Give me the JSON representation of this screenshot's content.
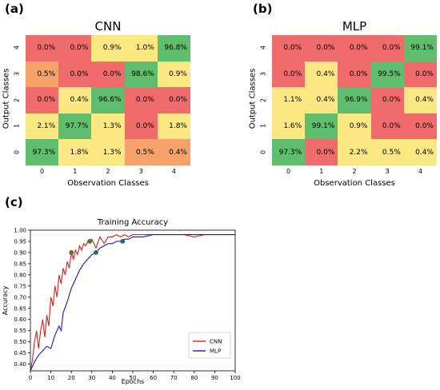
{
  "panels": {
    "a": "(a)",
    "b": "(b)",
    "c": "(c)"
  },
  "colors": {
    "high": "#5fbd6e",
    "low": "#f06b6b",
    "mid": "#fce882",
    "orange": "#f5a36a"
  },
  "chart_data": [
    {
      "type": "heatmap",
      "title": "CNN",
      "xlabel": "Observation Classes",
      "ylabel": "Output Classes",
      "x_categories": [
        "0",
        "1",
        "2",
        "3",
        "4"
      ],
      "y_categories": [
        "4",
        "3",
        "2",
        "1",
        "0"
      ],
      "values": [
        [
          "0.0%",
          "0.0%",
          "0.9%",
          "1.0%",
          "96.8%"
        ],
        [
          "0.5%",
          "0.0%",
          "0.0%",
          "98.6%",
          "0.9%"
        ],
        [
          "0.0%",
          "0.4%",
          "96.6%",
          "0.0%",
          "0.0%"
        ],
        [
          "2.1%",
          "97.7%",
          "1.3%",
          "0.0%",
          "1.8%"
        ],
        [
          "97.3%",
          "1.8%",
          "1.3%",
          "0.5%",
          "0.4%"
        ]
      ],
      "cell_colors": [
        [
          "low",
          "low",
          "mid",
          "mid",
          "high"
        ],
        [
          "orange",
          "low",
          "low",
          "high",
          "mid"
        ],
        [
          "low",
          "mid",
          "high",
          "low",
          "low"
        ],
        [
          "mid",
          "high",
          "mid",
          "low",
          "mid"
        ],
        [
          "high",
          "mid",
          "mid",
          "orange",
          "orange"
        ]
      ]
    },
    {
      "type": "heatmap",
      "title": "MLP",
      "xlabel": "Observation Classes",
      "ylabel": "Output Classes",
      "x_categories": [
        "0",
        "1",
        "2",
        "3",
        "4"
      ],
      "y_categories": [
        "4",
        "3",
        "2",
        "1",
        "0"
      ],
      "values": [
        [
          "0.0%",
          "0.0%",
          "0.0%",
          "0.0%",
          "99.1%"
        ],
        [
          "0.0%",
          "0.4%",
          "0.0%",
          "99.5%",
          "0.0%"
        ],
        [
          "1.1%",
          "0.4%",
          "96.9%",
          "0.0%",
          "0.4%"
        ],
        [
          "1.6%",
          "99.1%",
          "0.9%",
          "0.0%",
          "0.0%"
        ],
        [
          "97.3%",
          "0.0%",
          "2.2%",
          "0.5%",
          "0.4%"
        ]
      ],
      "cell_colors": [
        [
          "low",
          "low",
          "low",
          "low",
          "high"
        ],
        [
          "low",
          "mid",
          "low",
          "high",
          "low"
        ],
        [
          "mid",
          "mid",
          "high",
          "low",
          "mid"
        ],
        [
          "mid",
          "high",
          "mid",
          "low",
          "low"
        ],
        [
          "high",
          "low",
          "mid",
          "mid",
          "mid"
        ]
      ]
    },
    {
      "type": "line",
      "title": "Training Accuracy",
      "xlabel": "Epochs",
      "ylabel": "Accuracy",
      "xlim": [
        0,
        100
      ],
      "ylim": [
        0.37,
        1.0
      ],
      "xticks": [
        "0",
        "10",
        "20",
        "30",
        "40",
        "50",
        "60",
        "70",
        "80",
        "90",
        "100"
      ],
      "yticks": [
        "0.40",
        "0.45",
        "0.50",
        "0.55",
        "0.60",
        "0.65",
        "0.70",
        "0.75",
        "0.80",
        "0.85",
        "0.90",
        "0.95",
        "1.00"
      ],
      "legend_position": "bottom-right",
      "series": [
        {
          "name": "CNN",
          "color": "#e02020",
          "x": [
            0,
            1,
            2,
            3,
            4,
            5,
            6,
            7,
            8,
            9,
            10,
            11,
            12,
            13,
            14,
            15,
            16,
            17,
            18,
            19,
            20,
            21,
            22,
            23,
            24,
            25,
            26,
            27,
            28,
            29,
            30,
            32,
            34,
            36,
            38,
            40,
            42,
            44,
            46,
            48,
            50,
            55,
            60,
            65,
            70,
            75,
            80,
            85,
            90,
            95,
            100
          ],
          "y": [
            0.37,
            0.42,
            0.5,
            0.55,
            0.47,
            0.55,
            0.6,
            0.52,
            0.62,
            0.57,
            0.7,
            0.66,
            0.75,
            0.7,
            0.8,
            0.76,
            0.83,
            0.8,
            0.86,
            0.83,
            0.9,
            0.87,
            0.91,
            0.89,
            0.93,
            0.91,
            0.94,
            0.93,
            0.95,
            0.95,
            0.96,
            0.92,
            0.97,
            0.94,
            0.97,
            0.97,
            0.98,
            0.97,
            0.98,
            0.97,
            0.98,
            0.98,
            0.98,
            0.98,
            0.98,
            0.98,
            0.97,
            0.98,
            0.98,
            0.98,
            0.98
          ],
          "markers": [
            [
              20,
              0.9
            ],
            [
              29,
              0.95
            ]
          ]
        },
        {
          "name": "MLP",
          "color": "#1818c8",
          "x": [
            0,
            2,
            4,
            6,
            8,
            10,
            12,
            14,
            15,
            16,
            18,
            20,
            22,
            24,
            26,
            28,
            30,
            32,
            34,
            36,
            38,
            40,
            42,
            44,
            46,
            48,
            50,
            55,
            60,
            65,
            70,
            75,
            80,
            85,
            90,
            95,
            100
          ],
          "y": [
            0.37,
            0.41,
            0.44,
            0.46,
            0.48,
            0.47,
            0.53,
            0.57,
            0.55,
            0.63,
            0.68,
            0.74,
            0.78,
            0.82,
            0.85,
            0.87,
            0.89,
            0.9,
            0.92,
            0.93,
            0.94,
            0.94,
            0.95,
            0.95,
            0.96,
            0.96,
            0.97,
            0.97,
            0.98,
            0.98,
            0.98,
            0.98,
            0.98,
            0.98,
            0.98,
            0.98,
            0.98
          ],
          "markers": [
            [
              32,
              0.9
            ],
            [
              45,
              0.95
            ]
          ]
        }
      ]
    }
  ]
}
